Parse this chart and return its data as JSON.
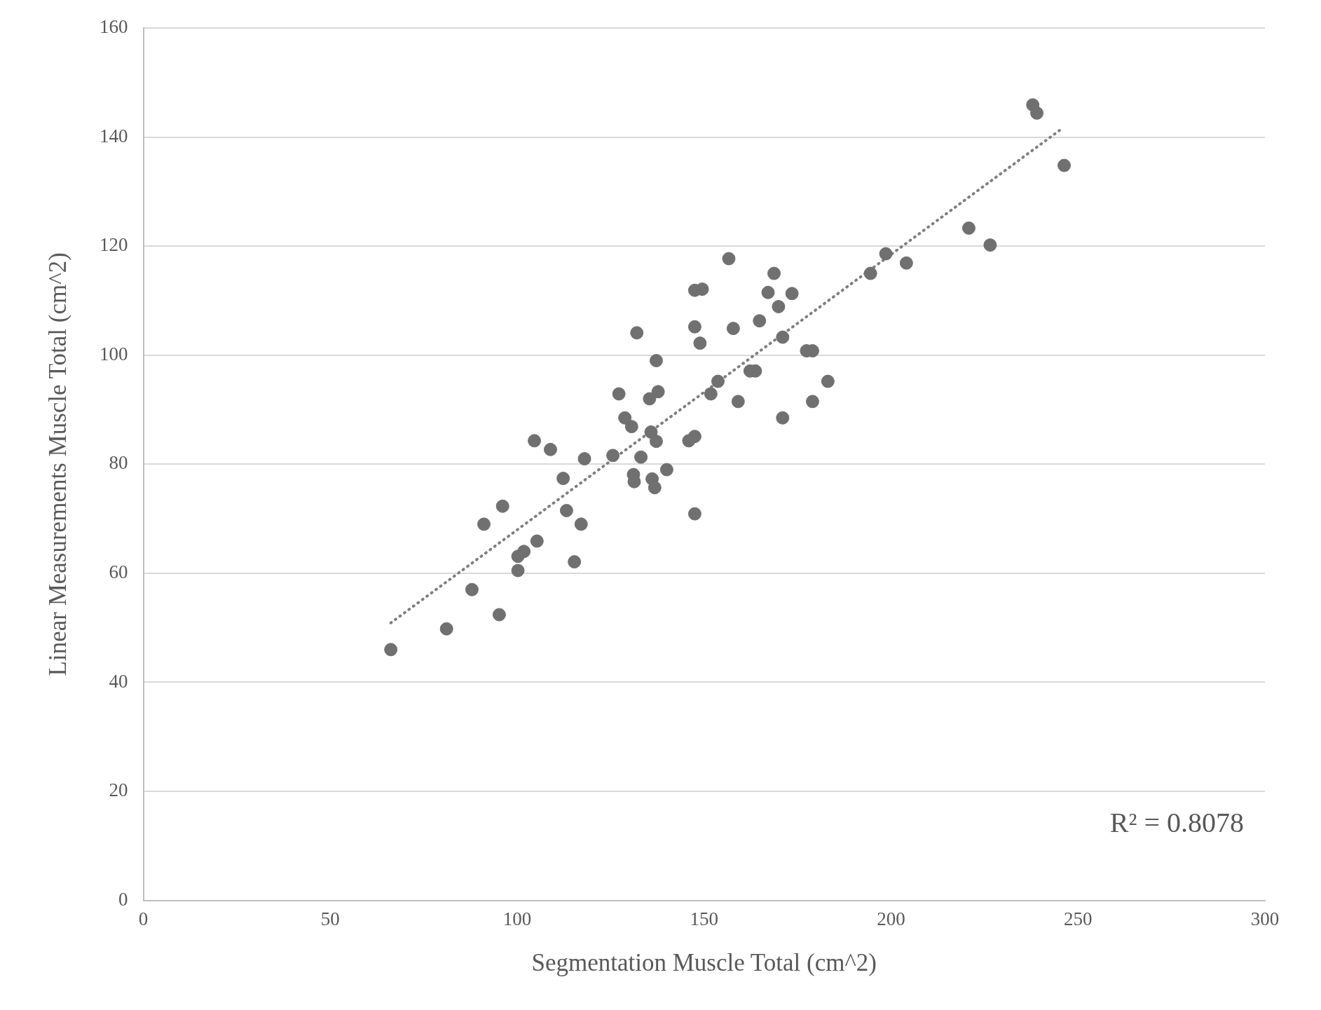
{
  "chart_data": {
    "type": "scatter",
    "xlabel": "Segmentation Muscle Total (cm^2)",
    "ylabel": "Linear Measurements Muscle Total (cm^2)",
    "xlim": [
      0,
      300
    ],
    "xticks": [
      0,
      50,
      100,
      150,
      200,
      250,
      300
    ],
    "ylim": [
      0,
      160
    ],
    "yticks": [
      0,
      20,
      40,
      60,
      80,
      100,
      120,
      140,
      160
    ],
    "grid": "y",
    "marker": "circle",
    "annotations": [
      "R² = 0.8078"
    ],
    "series": [
      {
        "color": "#707070",
        "x": [
          66.2,
          81.1,
          87.9,
          95.2,
          91.1,
          96.1,
          100.2,
          100.2,
          101.8,
          105.3,
          104.6,
          108.9,
          112.3,
          113.2,
          115.3,
          117.1,
          118.0,
          125.6,
          127.2,
          128.8,
          130.6,
          131.1,
          131.3,
          132.0,
          133.1,
          135.4,
          135.8,
          136.1,
          136.8,
          137.2,
          137.2,
          137.7,
          140.0,
          145.9,
          147.5,
          147.5,
          147.5,
          147.5,
          149.5,
          148.9,
          151.8,
          153.7,
          156.6,
          157.8,
          159.1,
          162.3,
          163.7,
          164.8,
          167.1,
          168.7,
          169.9,
          171.0,
          171.0,
          173.5,
          177.4,
          179.0,
          179.0,
          183.1,
          194.5,
          198.6,
          204.1,
          220.8,
          226.5,
          237.9,
          239.0,
          246.3
        ],
        "values": [
          46.0,
          49.8,
          57.0,
          52.4,
          69.0,
          72.3,
          60.5,
          63.1,
          64.0,
          65.9,
          84.3,
          82.7,
          77.4,
          71.5,
          62.1,
          69.0,
          81.0,
          81.6,
          92.9,
          88.5,
          86.9,
          78.1,
          76.8,
          104.1,
          81.3,
          92.0,
          85.9,
          77.3,
          75.7,
          84.2,
          99.0,
          93.3,
          79.0,
          84.3,
          85.1,
          70.9,
          105.2,
          111.9,
          112.1,
          102.2,
          92.9,
          95.2,
          117.7,
          104.9,
          91.5,
          97.1,
          97.1,
          106.3,
          111.5,
          115.0,
          108.9,
          103.3,
          88.5,
          111.3,
          100.8,
          100.8,
          91.5,
          95.2,
          115.0,
          118.6,
          116.9,
          123.3,
          120.2,
          145.9,
          144.4,
          134.8
        ]
      },
      {
        "type": "line",
        "color": "#7f7f7f",
        "line_style": "dotted",
        "marker": "none",
        "x": [
          66.2,
          245.2
        ],
        "values": [
          50.9,
          141.3
        ]
      }
    ]
  }
}
